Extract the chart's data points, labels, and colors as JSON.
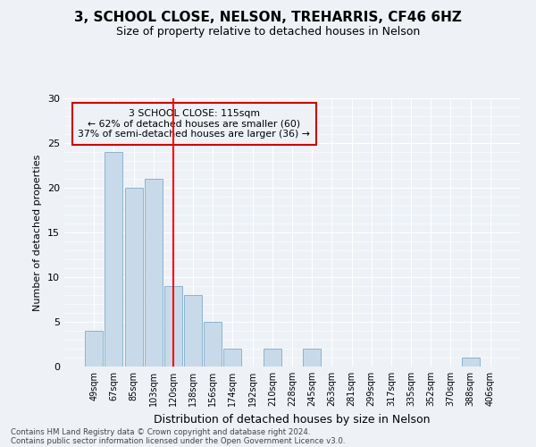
{
  "title1": "3, SCHOOL CLOSE, NELSON, TREHARRIS, CF46 6HZ",
  "title2": "Size of property relative to detached houses in Nelson",
  "xlabel": "Distribution of detached houses by size in Nelson",
  "ylabel": "Number of detached properties",
  "categories": [
    "49sqm",
    "67sqm",
    "85sqm",
    "103sqm",
    "120sqm",
    "138sqm",
    "156sqm",
    "174sqm",
    "192sqm",
    "210sqm",
    "228sqm",
    "245sqm",
    "263sqm",
    "281sqm",
    "299sqm",
    "317sqm",
    "335sqm",
    "352sqm",
    "370sqm",
    "388sqm",
    "406sqm"
  ],
  "values": [
    4,
    24,
    20,
    21,
    9,
    8,
    5,
    2,
    0,
    2,
    0,
    2,
    0,
    0,
    0,
    0,
    0,
    0,
    0,
    1,
    0
  ],
  "bar_color": "#c8daea",
  "bar_edge_color": "#8ab4d0",
  "vline_pos": 4.0,
  "annotation_line1": "3 SCHOOL CLOSE: 115sqm",
  "annotation_line2": "← 62% of detached houses are smaller (60)",
  "annotation_line3": "37% of semi-detached houses are larger (36) →",
  "box_color": "#cc0000",
  "ylim": [
    0,
    30
  ],
  "yticks": [
    0,
    5,
    10,
    15,
    20,
    25,
    30
  ],
  "footnote1": "Contains HM Land Registry data © Crown copyright and database right 2024.",
  "footnote2": "Contains public sector information licensed under the Open Government Licence v3.0.",
  "bg_color": "#eef2f7",
  "grid_color": "#ffffff"
}
